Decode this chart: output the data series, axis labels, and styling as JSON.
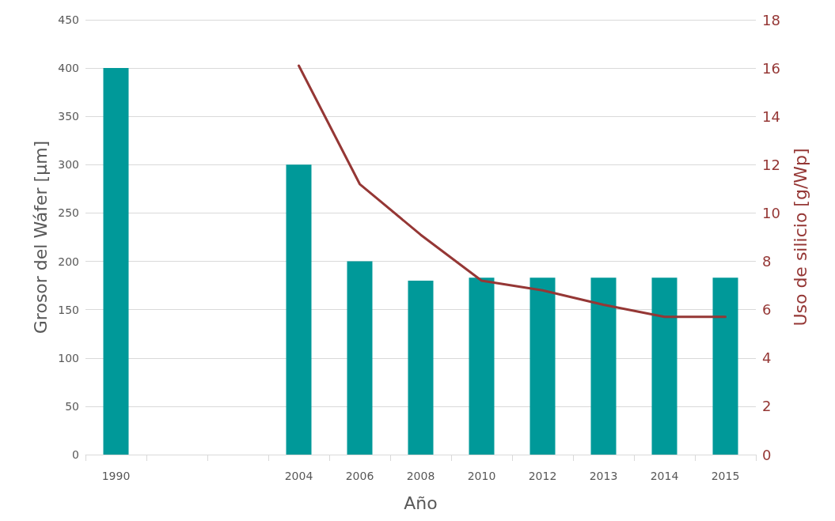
{
  "chart_data": {
    "type": "bar",
    "xlabel": "Año",
    "ylabel": "Grosor del Wáfer [µm]",
    "y2label": "Uso de silicio [g/Wp]",
    "categories": [
      "1990",
      null,
      null,
      "2004",
      "2006",
      "2008",
      "2010",
      "2012",
      "2013",
      "2014",
      "2015"
    ],
    "series": [
      {
        "color": "#009999",
        "values": [
          400,
          null,
          null,
          300,
          200,
          180,
          183,
          183,
          183,
          183,
          183
        ]
      },
      {
        "type": "line",
        "axis": "y2",
        "color": "#953735",
        "values": [
          null,
          null,
          null,
          16.1,
          11.2,
          9.1,
          7.2,
          6.8,
          6.2,
          5.7,
          5.7
        ]
      }
    ],
    "ylim": [
      0,
      450
    ],
    "yticks": [
      0,
      50,
      100,
      150,
      200,
      250,
      300,
      350,
      400,
      450
    ],
    "y2lim": [
      0,
      18
    ],
    "y2ticks": [
      0,
      2,
      4,
      6,
      8,
      10,
      12,
      14,
      16,
      18
    ],
    "grid": "y",
    "marker": "none",
    "line_style": "solid"
  }
}
